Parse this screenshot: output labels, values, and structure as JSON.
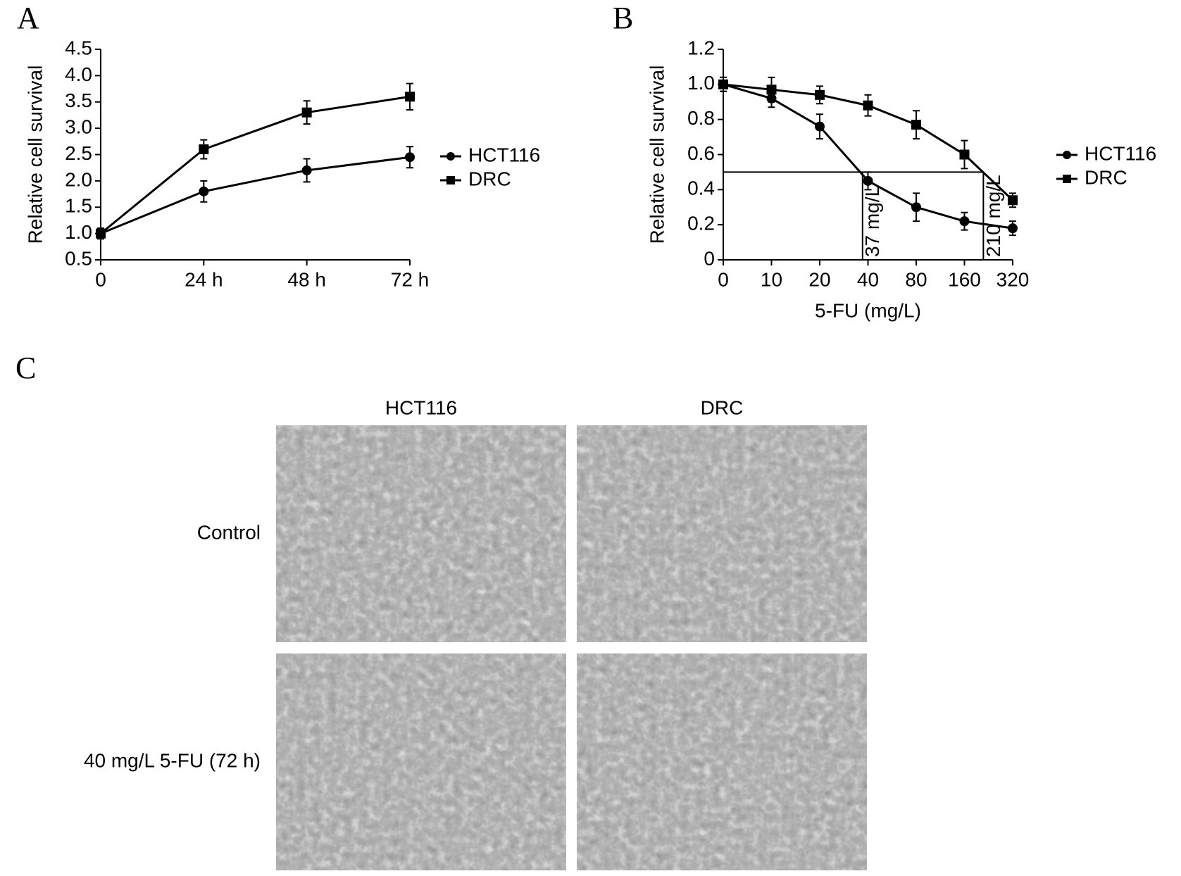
{
  "chart_data": [
    {
      "type": "line",
      "panel_label": "A",
      "ylabel": "Relative cell survival",
      "categories": [
        "0",
        "24 h",
        "48 h",
        "72 h"
      ],
      "ylim": [
        0.5,
        4.5
      ],
      "yticks": [
        0.5,
        {
          "value": 1,
          "label": "1.0"
        },
        1.5,
        {
          "value": 2,
          "label": "2.0"
        },
        2.5,
        {
          "value": 3,
          "label": "3.0"
        },
        3.5,
        {
          "value": 4,
          "label": "4.0"
        },
        4.5
      ],
      "legend": "right",
      "series": [
        {
          "name": "HCT116",
          "color": "#000000",
          "marker": "circle",
          "values": [
            1.0,
            1.8,
            2.2,
            2.45
          ],
          "errors": [
            0.1,
            0.2,
            0.22,
            0.2
          ]
        },
        {
          "name": "DRC",
          "color": "#000000",
          "marker": "square",
          "values": [
            1.0,
            2.6,
            3.3,
            3.6
          ],
          "errors": [
            0.1,
            0.18,
            0.22,
            0.25
          ]
        }
      ]
    },
    {
      "type": "line",
      "panel_label": "B",
      "ylabel": "Relative cell survival",
      "xlabel": "5-FU (mg/L)",
      "categories": [
        "0",
        "10",
        "20",
        "40",
        "80",
        "160",
        "320"
      ],
      "ylim": [
        0,
        1.2
      ],
      "yticks": [
        0,
        0.2,
        0.4,
        0.6,
        0.8,
        {
          "value": 1,
          "label": "1.0"
        },
        1.2
      ],
      "legend": "right",
      "series": [
        {
          "name": "HCT116",
          "color": "#000000",
          "marker": "circle",
          "values": [
            1.0,
            0.92,
            0.76,
            0.45,
            0.3,
            0.22,
            0.18
          ],
          "errors": [
            0.04,
            0.05,
            0.07,
            0.05,
            0.08,
            0.05,
            0.04
          ]
        },
        {
          "name": "DRC",
          "color": "#000000",
          "marker": "square",
          "values": [
            1.0,
            0.97,
            0.94,
            0.88,
            0.77,
            0.6,
            0.34
          ],
          "errors": [
            0.04,
            0.07,
            0.05,
            0.06,
            0.08,
            0.08,
            0.04
          ]
        }
      ],
      "threshold": 0.5,
      "annotations": [
        {
          "value": 37,
          "label": "37 mg/L"
        },
        {
          "value": 210,
          "label": "210 mg/L"
        }
      ]
    }
  ],
  "panel_c": {
    "label": "C",
    "columns": [
      "HCT116",
      "DRC"
    ],
    "rows": [
      "Control",
      "40 mg/L 5-FU (72 h)"
    ]
  }
}
